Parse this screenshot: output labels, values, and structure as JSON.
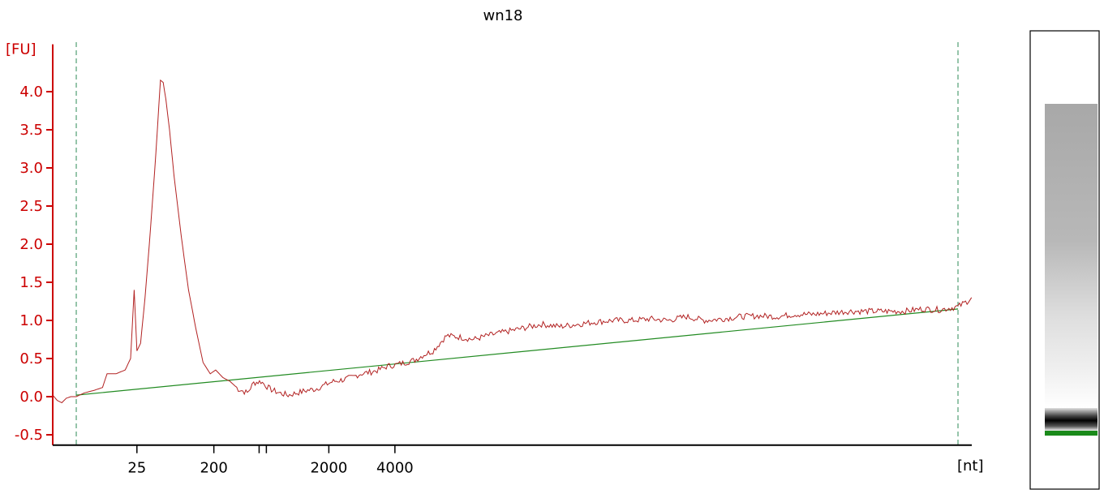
{
  "colors": {
    "trace": "#b22222",
    "baseline": "#228b22",
    "y_axis": "#cc0000",
    "marker_line": "#2e8b57",
    "gel_marker": "#1a8a1a"
  },
  "chart_data": {
    "type": "line",
    "title": "wn18",
    "ylabel": "[FU]",
    "xlabel": "[nt]",
    "ylim": [
      -0.55,
      4.6
    ],
    "xlim": [
      0,
      100
    ],
    "yticks": [
      {
        "value": -0.5,
        "label": "-0.5"
      },
      {
        "value": 0.0,
        "label": "0.0"
      },
      {
        "value": 0.5,
        "label": "0.5"
      },
      {
        "value": 1.0,
        "label": "1.0"
      },
      {
        "value": 1.5,
        "label": "1.5"
      },
      {
        "value": 2.0,
        "label": "2.0"
      },
      {
        "value": 2.5,
        "label": "2.5"
      },
      {
        "value": 3.0,
        "label": "3.0"
      },
      {
        "value": 3.5,
        "label": "3.5"
      },
      {
        "value": 4.0,
        "label": "4.0"
      }
    ],
    "xticks": [
      {
        "pos": 9.3,
        "label": "25"
      },
      {
        "pos": 17.8,
        "label": "200"
      },
      {
        "pos": 22.8,
        "label": ""
      },
      {
        "pos": 23.6,
        "label": ""
      },
      {
        "pos": 30.5,
        "label": "2000"
      },
      {
        "pos": 37.8,
        "label": "4000"
      }
    ],
    "markers_x": [
      2.6,
      100.0
    ],
    "baseline": {
      "x": [
        2.6,
        100.0
      ],
      "y": [
        0.02,
        1.15
      ]
    },
    "series": [
      {
        "x": [
          0,
          0.5,
          1.0,
          1.5,
          2.0,
          2.6,
          3.5,
          4.5,
          5.5,
          6.0,
          7.0,
          8.0,
          8.6,
          9.0,
          9.3,
          9.7,
          10.2,
          10.8,
          11.4,
          11.9,
          12.2,
          12.5,
          12.9,
          13.4,
          14.2,
          15.0,
          15.8,
          16.6,
          17.4,
          18.0,
          18.8,
          19.6,
          20.5,
          21.5,
          22.2,
          23.0,
          24.0,
          25.0,
          26.0,
          27.0,
          28.0,
          29.0,
          30.0,
          31.0,
          32.0,
          33.0,
          34.0,
          35.0,
          36.0,
          37.0,
          38.0,
          39.0,
          40.0,
          41.0,
          42.0,
          43.5,
          45.0,
          46.5,
          48.0,
          50.0,
          52.0,
          54.0,
          56.0,
          58.0,
          60.0,
          62.0,
          64.0,
          66.0,
          68.0,
          70.0,
          72.0,
          74.0,
          76.0,
          78.0,
          80.0,
          82.0,
          84.0,
          86.0,
          88.0,
          90.0,
          92.0,
          94.0,
          96.0,
          98.0,
          100.0,
          101.0,
          101.5
        ],
        "y": [
          0.02,
          -0.05,
          -0.08,
          -0.02,
          0.0,
          0.0,
          0.05,
          0.08,
          0.12,
          0.3,
          0.3,
          0.35,
          0.5,
          1.4,
          0.6,
          0.7,
          1.3,
          2.2,
          3.2,
          4.15,
          4.12,
          3.9,
          3.5,
          2.9,
          2.1,
          1.4,
          0.9,
          0.45,
          0.3,
          0.35,
          0.25,
          0.2,
          0.1,
          0.05,
          0.18,
          0.2,
          0.1,
          0.05,
          0.02,
          0.05,
          0.08,
          0.1,
          0.15,
          0.2,
          0.22,
          0.25,
          0.3,
          0.32,
          0.35,
          0.4,
          0.42,
          0.45,
          0.48,
          0.55,
          0.6,
          0.8,
          0.78,
          0.75,
          0.8,
          0.85,
          0.9,
          0.95,
          0.92,
          0.95,
          0.98,
          1.0,
          1.0,
          1.02,
          1.0,
          1.05,
          1.0,
          1.02,
          1.05,
          1.06,
          1.05,
          1.08,
          1.08,
          1.1,
          1.12,
          1.12,
          1.12,
          1.12,
          1.15,
          1.14,
          1.18,
          1.25,
          1.3
        ]
      }
    ]
  }
}
